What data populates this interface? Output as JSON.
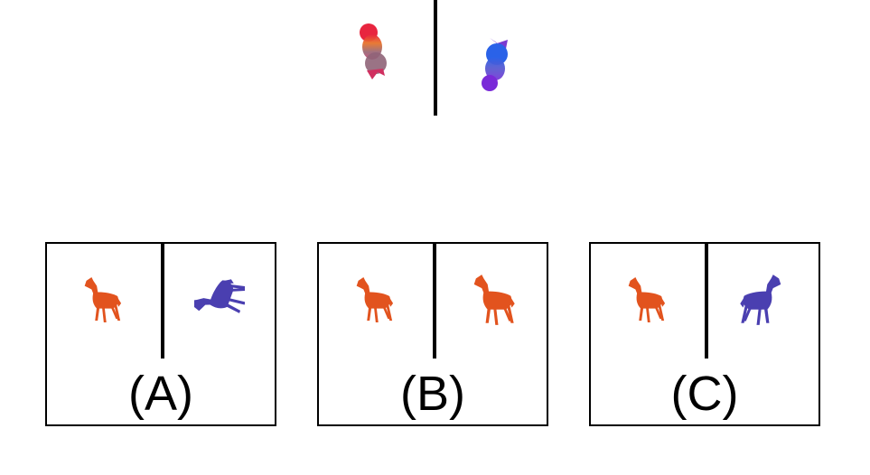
{
  "colors": {
    "line": "#000000",
    "orange_horse": "#e2531e",
    "blue_horse": "#4a3fb0"
  },
  "options": [
    {
      "label": "(A)",
      "left_icon": "orange-horse-icon",
      "right_icon": "blue-horse-tumbling-icon"
    },
    {
      "label": "(B)",
      "left_icon": "orange-horse-icon",
      "right_icon": "orange-horse-icon"
    },
    {
      "label": "(C)",
      "left_icon": "orange-horse-icon",
      "right_icon": "blue-horse-icon"
    }
  ]
}
